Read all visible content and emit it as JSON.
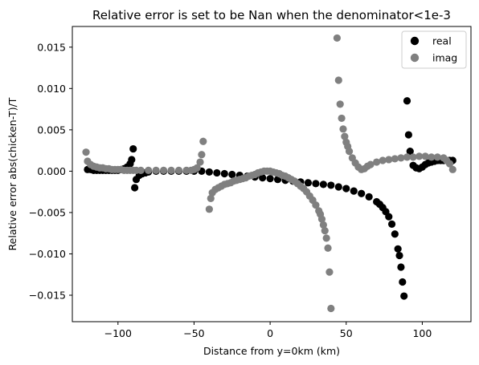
{
  "chart_data": {
    "type": "scatter",
    "title": "Relative error is set to be Nan when the denominator<1e-3",
    "xlabel": "Distance from y=0km (km)",
    "ylabel": "Relative error abs(chicken-T)/T",
    "xlim": [
      -130,
      132
    ],
    "ylim": [
      -0.0182,
      0.0175
    ],
    "xticks": [
      -100,
      -50,
      0,
      50,
      100
    ],
    "xtick_labels": [
      "−100",
      "−50",
      "0",
      "50",
      "100"
    ],
    "yticks": [
      0.015,
      0.01,
      0.005,
      0.0,
      -0.005,
      -0.01,
      -0.015
    ],
    "ytick_labels": [
      "0.015",
      "0.010",
      "0.005",
      "0.000",
      "−0.005",
      "−0.010",
      "−0.015"
    ],
    "grid": false,
    "legend_position": "top-right",
    "series": [
      {
        "name": "real",
        "color": "#000000",
        "x": [
          -120,
          -118,
          -116,
          -114,
          -112,
          -110,
          -108,
          -106,
          -104,
          -102,
          -100,
          -98,
          -96,
          -94,
          -92,
          -91,
          -90,
          -89,
          -88,
          -86,
          -84,
          -82,
          -80,
          -75,
          -70,
          -65,
          -60,
          -55,
          -50,
          -45,
          -40,
          -35,
          -30,
          -25,
          -20,
          -15,
          -10,
          -5,
          0,
          5,
          10,
          15,
          20,
          25,
          30,
          35,
          40,
          45,
          50,
          55,
          60,
          65,
          70,
          72,
          74,
          76,
          78,
          80,
          82,
          84,
          85,
          86,
          87,
          88,
          90,
          91,
          92,
          94,
          96,
          98,
          100,
          102,
          104,
          106,
          108,
          110,
          112,
          114,
          116,
          118,
          120
        ],
        "y": [
          0.0002,
          0.0002,
          0.0001,
          0.0001,
          0.0001,
          0.0001,
          0.0001,
          0.0001,
          0.0001,
          0.0001,
          0.0001,
          0.0002,
          0.0003,
          0.0005,
          0.0009,
          0.0014,
          0.0027,
          -0.002,
          -0.001,
          -0.0005,
          -0.0003,
          -0.0002,
          -0.0001,
          0.0,
          0.0,
          0.0,
          0.0,
          0.0,
          0.0,
          0.0,
          -0.0001,
          -0.0002,
          -0.0003,
          -0.0004,
          -0.0005,
          -0.0006,
          -0.0007,
          -0.0008,
          -0.0009,
          -0.001,
          -0.0011,
          -0.0012,
          -0.0013,
          -0.0014,
          -0.0015,
          -0.0016,
          -0.0017,
          -0.0019,
          -0.0021,
          -0.0024,
          -0.0027,
          -0.0031,
          -0.0037,
          -0.004,
          -0.0044,
          -0.0049,
          -0.0055,
          -0.0064,
          -0.0076,
          -0.0094,
          -0.0102,
          -0.0116,
          -0.0134,
          -0.0151,
          0.0085,
          0.0044,
          0.0024,
          0.0007,
          0.0004,
          0.0003,
          0.0005,
          0.0008,
          0.001,
          0.0011,
          0.0012,
          0.0013,
          0.0013,
          0.0013,
          0.0013,
          0.0013,
          0.0013
        ]
      },
      {
        "name": "imag",
        "color": "#808080",
        "x": [
          -121,
          -120,
          -118,
          -116,
          -114,
          -112,
          -110,
          -108,
          -106,
          -104,
          -102,
          -100,
          -98,
          -96,
          -94,
          -92,
          -90,
          -88,
          -85,
          -80,
          -75,
          -70,
          -65,
          -60,
          -55,
          -52,
          -50,
          -48,
          -46,
          -45,
          -44,
          -40,
          -39,
          -38,
          -36,
          -34,
          -32,
          -30,
          -28,
          -26,
          -24,
          -22,
          -20,
          -18,
          -16,
          -14,
          -12,
          -10,
          -8,
          -6,
          -4,
          -2,
          0,
          2,
          4,
          6,
          8,
          10,
          12,
          14,
          16,
          18,
          20,
          22,
          24,
          26,
          28,
          30,
          32,
          33,
          34,
          35,
          36,
          37,
          38,
          39,
          40,
          44,
          45,
          46,
          47,
          48,
          49,
          50,
          51,
          52,
          54,
          56,
          58,
          60,
          62,
          64,
          66,
          70,
          74,
          78,
          82,
          86,
          90,
          94,
          98,
          102,
          106,
          110,
          114,
          116,
          118,
          120
        ],
        "y": [
          0.0023,
          0.0012,
          0.0008,
          0.0006,
          0.0005,
          0.0004,
          0.0004,
          0.0003,
          0.0003,
          0.0002,
          0.0002,
          0.0002,
          0.0002,
          0.0001,
          0.0001,
          0.0001,
          0.0001,
          0.0001,
          0.0001,
          0.0001,
          0.0001,
          0.0001,
          0.0001,
          0.0001,
          0.0001,
          0.0001,
          0.0002,
          0.0004,
          0.0011,
          0.002,
          0.0036,
          -0.0046,
          -0.0033,
          -0.0026,
          -0.0022,
          -0.002,
          -0.0018,
          -0.0016,
          -0.0015,
          -0.0014,
          -0.0012,
          -0.0011,
          -0.001,
          -0.0009,
          -0.0008,
          -0.0006,
          -0.0005,
          -0.0004,
          -0.0002,
          -0.0001,
          0.0,
          0.0,
          0.0,
          -0.0001,
          -0.0002,
          -0.0003,
          -0.0005,
          -0.0006,
          -0.0008,
          -0.001,
          -0.0012,
          -0.0015,
          -0.0018,
          -0.0021,
          -0.0025,
          -0.003,
          -0.0035,
          -0.0041,
          -0.0048,
          -0.0052,
          -0.0058,
          -0.0065,
          -0.0072,
          -0.0081,
          -0.0093,
          -0.0122,
          -0.0166,
          0.0161,
          0.011,
          0.0081,
          0.0064,
          0.0051,
          0.0042,
          0.0035,
          0.003,
          0.0024,
          0.0016,
          0.001,
          0.0005,
          0.0002,
          0.0003,
          0.0006,
          0.0008,
          0.0011,
          0.0013,
          0.0014,
          0.0015,
          0.0016,
          0.0017,
          0.0017,
          0.0018,
          0.0018,
          0.0017,
          0.0017,
          0.0016,
          0.0013,
          0.0009,
          0.0002
        ]
      }
    ]
  }
}
